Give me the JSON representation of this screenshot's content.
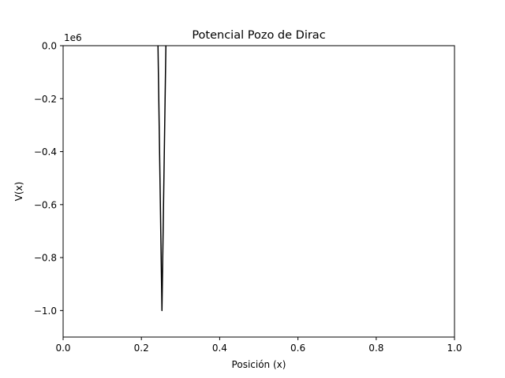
{
  "chart_data": {
    "type": "line",
    "title": "Potencial Pozo de Dirac",
    "xlabel": "Posición (x)",
    "ylabel": "V(x)",
    "offset_text": "1e6",
    "xlim": [
      0,
      1
    ],
    "ylim": [
      -1100000,
      0
    ],
    "x_ticks": [
      0.0,
      0.2,
      0.4,
      0.6,
      0.8,
      1.0
    ],
    "x_tick_labels": [
      "0.0",
      "0.2",
      "0.4",
      "0.6",
      "0.8",
      "1.0"
    ],
    "y_ticks": [
      0,
      -200000,
      -400000,
      -600000,
      -800000,
      -1000000
    ],
    "y_tick_labels": [
      "0.0",
      "−0.2",
      "−0.4",
      "−0.6",
      "−0.8",
      "−1.0"
    ],
    "grid": false,
    "series": [
      {
        "color": "#000000",
        "x": [
          0.2424,
          0.2525,
          0.2626
        ],
        "y": [
          0,
          -1000000,
          0
        ]
      }
    ]
  }
}
